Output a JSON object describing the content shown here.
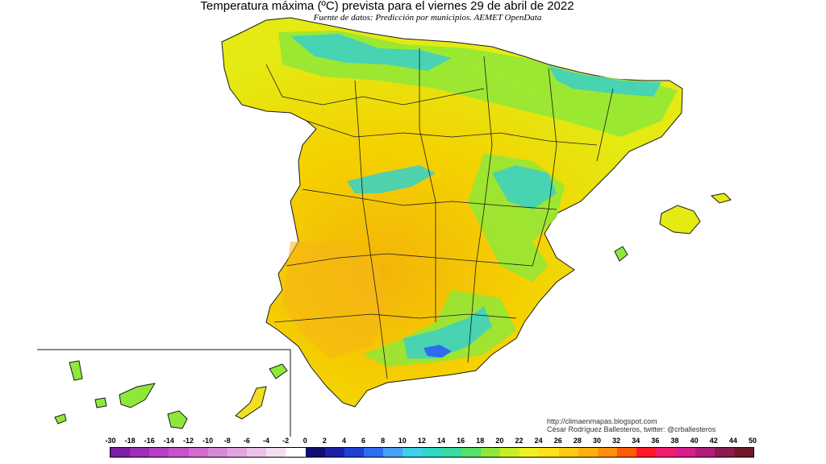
{
  "title": "Temperatura máxima (ºC) prevista para el viernes 29 de abril de 2022",
  "subtitle": "Fuente de datos: Predicción por municipios. AEMET OpenData",
  "credits": {
    "url": "http://climaenmapas.blogspot.com",
    "author": "César Rodríguez Ballesteros, twitter: @crballesteros"
  },
  "legend": {
    "labels": [
      "-30",
      "-18",
      "-16",
      "-14",
      "-12",
      "-10",
      "-8",
      "-6",
      "-4",
      "-2",
      "0",
      "2",
      "4",
      "6",
      "8",
      "10",
      "12",
      "14",
      "16",
      "18",
      "20",
      "22",
      "24",
      "26",
      "28",
      "30",
      "32",
      "34",
      "36",
      "38",
      "40",
      "42",
      "44",
      "50"
    ],
    "colors": [
      "#7a1fa2",
      "#9b2fb5",
      "#b53fc0",
      "#c455c9",
      "#cf6dcf",
      "#d98ad6",
      "#e2a6de",
      "#ecc4e8",
      "#f3dff0",
      "#ffffff",
      "#10106e",
      "#1a22a8",
      "#1f3fd6",
      "#2f6cf0",
      "#4aa0f5",
      "#3fcfe8",
      "#30d8c8",
      "#38dca0",
      "#54e06a",
      "#8ee83a",
      "#c8ee26",
      "#f0f020",
      "#ffe21a",
      "#ffcc12",
      "#ffb00c",
      "#ff8f08",
      "#ff5a04",
      "#ff1a2a",
      "#f01e6e",
      "#d81e8a",
      "#b01c7a",
      "#8c1a52",
      "#6e1a2a"
    ]
  },
  "map_colors": {
    "background": "#ffffff",
    "sea": "#ffffff",
    "warm": "#f2c200",
    "mild": "#e4ea12",
    "cool": "#8ee83a",
    "cold": "#3fd0c0",
    "border": "#1a1a1a"
  }
}
